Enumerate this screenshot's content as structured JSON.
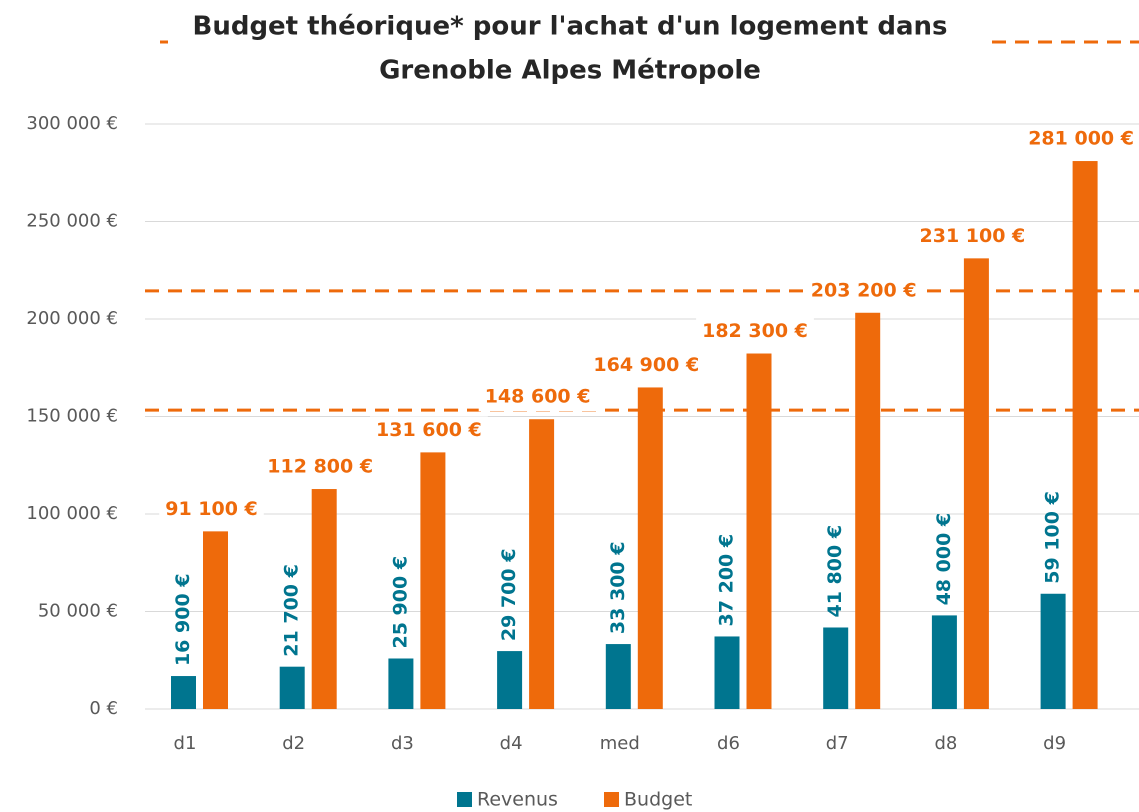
{
  "chart_data": {
    "type": "bar",
    "title": [
      "Budget théorique* pour l'achat d'un logement dans",
      "Grenoble Alpes Métropole"
    ],
    "categories": [
      "d1",
      "d2",
      "d3",
      "d4",
      "med",
      "d6",
      "d7",
      "d8",
      "d9"
    ],
    "series": [
      {
        "name": "Revenus",
        "color": "#00758f",
        "values": [
          16900,
          21700,
          25900,
          29700,
          33300,
          37200,
          41800,
          48000,
          59100
        ],
        "value_labels": [
          "16 900 €",
          "21 700 €",
          "25 900 €",
          "29 700 €",
          "33 300 €",
          "37 200 €",
          "41 800 €",
          "48 000 €",
          "59 100 €"
        ]
      },
      {
        "name": "Budget",
        "color": "#ee6a0b",
        "values": [
          91100,
          112800,
          131600,
          148600,
          164900,
          182300,
          203200,
          231100,
          281000
        ],
        "value_labels": [
          "91 100 €",
          "112 800 €",
          "131 600 €",
          "148 600 €",
          "164 900 €",
          "182 300 €",
          "203 200 €",
          "231 100 €",
          "281 000 €"
        ]
      }
    ],
    "ylim": [
      0,
      300000
    ],
    "yticks": [
      {
        "value": 0,
        "label": "0 €"
      },
      {
        "value": 50000,
        "label": "50 000 €"
      },
      {
        "value": 100000,
        "label": "100 000 €"
      },
      {
        "value": 150000,
        "label": "150 000 €"
      },
      {
        "value": 200000,
        "label": "200 000 €"
      },
      {
        "value": 250000,
        "label": "250 000 €"
      },
      {
        "value": 300000,
        "label": "300 000 €"
      }
    ],
    "reference_lines": [
      153300,
      214400
    ],
    "reference_color": "#ee6a0b",
    "grid": true,
    "legend": "bottom"
  }
}
